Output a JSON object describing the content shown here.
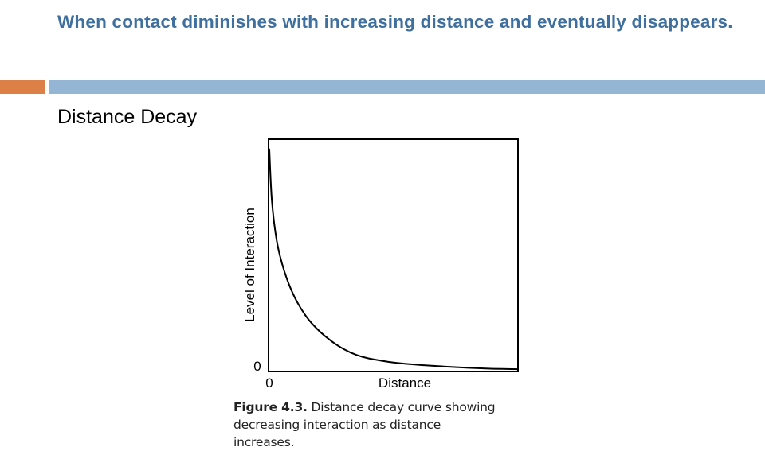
{
  "slide": {
    "title": "When contact diminishes with increasing distance and eventually disappears.",
    "subtitle": "Distance Decay"
  },
  "accent_colors": {
    "orange": "#dd8048",
    "blue": "#95b5d5",
    "title": "#3e6f9e"
  },
  "chart_data": {
    "type": "line",
    "xlabel": "Distance",
    "ylabel": "Level of Interaction",
    "x_origin_label": "0",
    "y_origin_label": "0",
    "xlim": [
      0,
      10
    ],
    "ylim": [
      0,
      10
    ],
    "grid": false,
    "x": [
      0,
      0.1,
      0.3,
      0.6,
      1.0,
      1.5,
      2.0,
      2.5,
      3.0,
      3.5,
      4.0,
      5.0,
      6.0,
      7.0,
      8.0,
      9.0,
      10.0
    ],
    "y": [
      9.6,
      7.4,
      5.6,
      4.3,
      3.2,
      2.3,
      1.7,
      1.25,
      0.9,
      0.65,
      0.5,
      0.32,
      0.22,
      0.15,
      0.09,
      0.05,
      0.03
    ],
    "caption_label": "Figure 4.3.",
    "caption_text": "Distance decay curve showing decreasing interaction as distance increases."
  }
}
